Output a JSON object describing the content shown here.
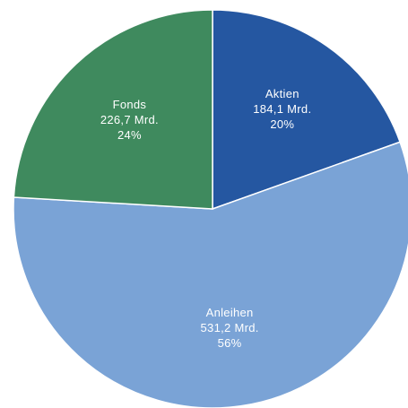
{
  "chart_data": {
    "type": "pie",
    "title": "",
    "unit": "Mrd.",
    "start_angle_deg": 0,
    "direction": "clockwise",
    "slices": [
      {
        "label": "Aktien",
        "value": 184.1,
        "value_text": "184,1 Mrd.",
        "percent_text": "20%",
        "color": "#2557a1"
      },
      {
        "label": "Anleihen",
        "value": 531.2,
        "value_text": "531,2 Mrd.",
        "percent_text": "56%",
        "color": "#7aa3d6"
      },
      {
        "label": "Fonds",
        "value": 226.7,
        "value_text": "226,7 Mrd.",
        "percent_text": "24%",
        "color": "#3f8a5e"
      }
    ]
  }
}
